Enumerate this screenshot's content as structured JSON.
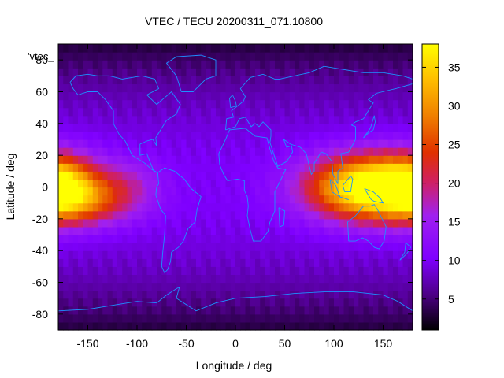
{
  "chart_data": {
    "type": "heatmap",
    "title": "VTEC / TECU 20200311_071.10800",
    "xlabel": "Longitude / deg",
    "ylabel": "Latitude / deg",
    "key_label": "'vtec_",
    "xlim": [
      -180,
      180
    ],
    "ylim": [
      -90,
      90
    ],
    "x_ticks": [
      -150,
      -100,
      -50,
      0,
      50,
      100,
      150
    ],
    "y_ticks": [
      -80,
      -60,
      -40,
      -20,
      0,
      20,
      40,
      60,
      80
    ],
    "y_tick_labels": [
      "-80",
      "-60",
      "-40",
      "-20",
      "0",
      "20",
      "40",
      "60",
      "80"
    ],
    "colorbar": {
      "range": [
        1,
        38
      ],
      "ticks": [
        5,
        10,
        15,
        20,
        25,
        30,
        35
      ],
      "palette": [
        "#000000",
        "#4b0082",
        "#7f00ff",
        "#a020f0",
        "#d02060",
        "#e03000",
        "#f08000",
        "#ffc000",
        "#ffff00"
      ]
    },
    "grid_step_deg": 5,
    "features": [
      {
        "lon": 140,
        "lat": 0,
        "peak": 33,
        "sx": 45,
        "sy": 14
      },
      {
        "lon": 135,
        "lat": -2,
        "peak": 5,
        "sx": 8,
        "sy": 5
      },
      {
        "lon": -175,
        "lat": 0,
        "peak": 13,
        "sx": 25,
        "sy": 14
      },
      {
        "lon": -140,
        "lat": -10,
        "peak": 9,
        "sx": 35,
        "sy": 10
      },
      {
        "lon": -110,
        "lat": 5,
        "peak": 5,
        "sx": 25,
        "sy": 10
      }
    ],
    "base_vtec": 10,
    "polar_min_vtec": 3
  },
  "coastline_color": "#1e90ff"
}
